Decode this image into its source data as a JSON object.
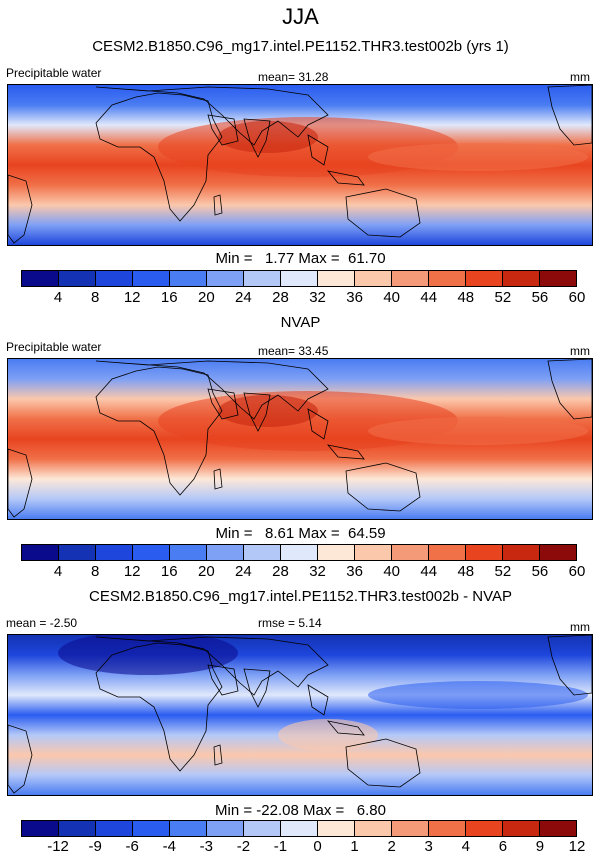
{
  "figure": {
    "season": "JJA",
    "panels": [
      {
        "title": "CESM2.B1850.C96_mg17.intel.PE1152.THR3.test002b (yrs 1)",
        "left_label": "Precipitable water",
        "center_label": "mean=  31.28",
        "right_label": "mm",
        "minmax_label": "Min =   1.77 Max =  61.70",
        "colorbar_ticks": [
          "4",
          "8",
          "12",
          "16",
          "20",
          "24",
          "28",
          "32",
          "36",
          "40",
          "44",
          "48",
          "52",
          "56",
          "60"
        ],
        "field_type": "absolute"
      },
      {
        "title": "NVAP",
        "left_label": "Precipitable water",
        "center_label": "mean=  33.45",
        "right_label": "mm",
        "minmax_label": "Min =   8.61 Max =  64.59",
        "colorbar_ticks": [
          "4",
          "8",
          "12",
          "16",
          "20",
          "24",
          "28",
          "32",
          "36",
          "40",
          "44",
          "48",
          "52",
          "56",
          "60"
        ],
        "field_type": "absolute"
      },
      {
        "title": "CESM2.B1850.C96_mg17.intel.PE1152.THR3.test002b - NVAP",
        "left_label": "mean =  -2.50",
        "center_label": "rmse =   5.14",
        "right_label": "mm",
        "minmax_label": "Min = -22.08 Max =   6.80",
        "colorbar_ticks": [
          "-12",
          "-9",
          "-6",
          "-4",
          "-3",
          "-2",
          "-1",
          "0",
          "1",
          "2",
          "3",
          "4",
          "6",
          "9",
          "12"
        ],
        "field_type": "difference"
      }
    ],
    "colorbar_colors": [
      "#0a0a8c",
      "#1432b4",
      "#1e46dc",
      "#2a5cf0",
      "#4a7cf2",
      "#7ea0f5",
      "#b4c8f8",
      "#e0e8fb",
      "#fde8d8",
      "#fbc8ac",
      "#f59a78",
      "#f07048",
      "#e84420",
      "#c82810",
      "#8c0a0a"
    ]
  }
}
